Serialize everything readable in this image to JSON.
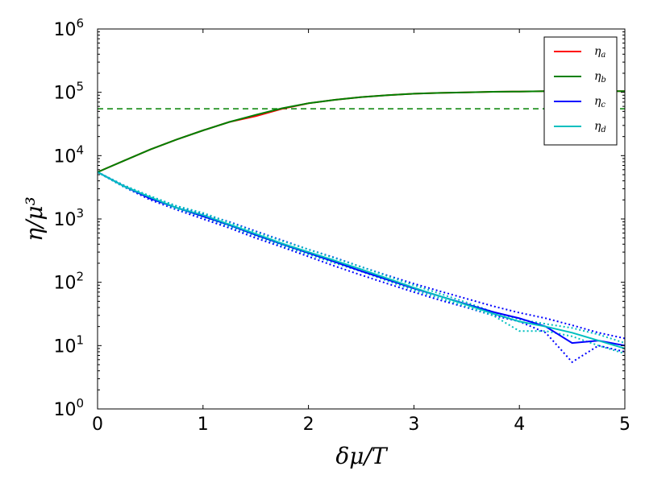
{
  "chart_data": {
    "type": "line",
    "title": "",
    "xlabel": "δμ/T",
    "ylabel": "η/μ³",
    "xlim": [
      0,
      5
    ],
    "ylim": [
      1,
      1000000
    ],
    "yscale": "log",
    "grid": false,
    "legend_position": "top-right",
    "x_ticks": [
      "0",
      "1",
      "2",
      "3",
      "4",
      "5"
    ],
    "y_ticks": [
      {
        "base": "10",
        "exp": "0"
      },
      {
        "base": "10",
        "exp": "1"
      },
      {
        "base": "10",
        "exp": "2"
      },
      {
        "base": "10",
        "exp": "3"
      },
      {
        "base": "10",
        "exp": "4"
      },
      {
        "base": "10",
        "exp": "5"
      },
      {
        "base": "10",
        "exp": "6"
      }
    ],
    "reference_line": {
      "y": 55000,
      "color": "#008000",
      "style": "dashed"
    },
    "series": [
      {
        "name": "η",
        "sub": "a",
        "color": "#ff0000",
        "x": [
          0,
          0.25,
          0.5,
          0.75,
          1.0,
          1.25,
          1.5,
          1.75,
          2.0,
          2.25,
          2.5,
          2.75,
          3.0,
          3.25,
          3.5,
          3.75,
          4.0,
          4.25,
          4.5,
          4.75,
          5.0
        ],
        "y": [
          5500,
          8300,
          12500,
          18000,
          25000,
          34000,
          42000,
          55000,
          67000,
          76000,
          84000,
          90000,
          95000,
          98000,
          100000,
          102000,
          103000,
          104000,
          104000,
          104000,
          104000
        ]
      },
      {
        "name": "η",
        "sub": "b",
        "color": "#008000",
        "x": [
          0,
          0.25,
          0.5,
          0.75,
          1.0,
          1.25,
          1.5,
          1.75,
          2.0,
          2.25,
          2.5,
          2.75,
          3.0,
          3.25,
          3.5,
          3.75,
          4.0,
          4.25,
          4.5,
          4.75,
          5.0
        ],
        "y": [
          5500,
          8300,
          12500,
          18000,
          25000,
          34000,
          44000,
          56000,
          67000,
          76000,
          84000,
          90000,
          95000,
          98000,
          100000,
          102000,
          103000,
          104000,
          104000,
          104000,
          104000
        ]
      },
      {
        "name": "η",
        "sub": "c",
        "color": "#0000ff",
        "x": [
          0,
          0.25,
          0.5,
          0.75,
          1.0,
          1.25,
          1.5,
          1.75,
          2.0,
          2.25,
          2.5,
          2.75,
          3.0,
          3.25,
          3.5,
          3.75,
          4.0,
          4.25,
          4.5,
          4.75,
          5.0
        ],
        "y": [
          5500,
          3300,
          2100,
          1500,
          1100,
          800,
          560,
          400,
          290,
          210,
          150,
          110,
          80,
          60,
          45,
          34,
          27,
          20,
          11,
          12,
          10
        ]
      },
      {
        "name": "η",
        "sub": "d",
        "color": "#00bfbf",
        "x": [
          0,
          0.25,
          0.5,
          0.75,
          1.0,
          1.25,
          1.5,
          1.75,
          2.0,
          2.25,
          2.5,
          2.75,
          3.0,
          3.25,
          3.5,
          3.75,
          4.0,
          4.25,
          4.5,
          4.75,
          5.0
        ],
        "y": [
          5500,
          3300,
          2200,
          1500,
          1150,
          820,
          580,
          410,
          300,
          220,
          160,
          115,
          82,
          60,
          44,
          32,
          24,
          20,
          16,
          12,
          9
        ]
      }
    ],
    "dotted_series": [
      {
        "color": "#0000ff",
        "x": [
          0,
          0.25,
          0.5,
          0.75,
          1.0,
          1.25,
          1.5,
          1.75,
          2.0,
          2.25,
          2.5,
          2.75,
          3.0,
          3.25,
          3.5,
          3.75,
          4.0,
          4.25,
          4.5,
          4.75,
          5.0
        ],
        "y": [
          5500,
          3400,
          2250,
          1600,
          1200,
          900,
          640,
          460,
          330,
          245,
          175,
          128,
          95,
          72,
          55,
          42,
          33,
          27,
          21,
          16,
          13
        ]
      },
      {
        "color": "#0000ff",
        "x": [
          0,
          0.25,
          0.5,
          0.75,
          1.0,
          1.25,
          1.5,
          1.75,
          2.0,
          2.25,
          2.5,
          2.75,
          3.0,
          3.25,
          3.5,
          3.75,
          4.0,
          4.25,
          4.5,
          4.75,
          5.0
        ],
        "y": [
          5500,
          3200,
          2000,
          1400,
          1000,
          720,
          500,
          360,
          255,
          180,
          130,
          95,
          70,
          52,
          40,
          30,
          24,
          16,
          5.5,
          10,
          8
        ]
      },
      {
        "color": "#00bfbf",
        "x": [
          0,
          0.25,
          0.5,
          0.75,
          1.0,
          1.25,
          1.5,
          1.75,
          2.0,
          2.25,
          2.5,
          2.75,
          3.0,
          3.25,
          3.5,
          3.75,
          4.0,
          4.25,
          4.5,
          4.75,
          5.0
        ],
        "y": [
          5500,
          3400,
          2300,
          1600,
          1250,
          880,
          620,
          450,
          330,
          240,
          175,
          125,
          90,
          66,
          48,
          34,
          26,
          22,
          19,
          15,
          11
        ]
      },
      {
        "color": "#00bfbf",
        "x": [
          0,
          0.25,
          0.5,
          0.75,
          1.0,
          1.25,
          1.5,
          1.75,
          2.0,
          2.25,
          2.5,
          2.75,
          3.0,
          3.25,
          3.5,
          3.75,
          4.0,
          4.25,
          4.5,
          4.75,
          5.0
        ],
        "y": [
          5500,
          3200,
          2100,
          1450,
          1080,
          760,
          540,
          380,
          275,
          200,
          148,
          105,
          75,
          56,
          41,
          30,
          17,
          17,
          14,
          10,
          7.5
        ]
      }
    ]
  }
}
